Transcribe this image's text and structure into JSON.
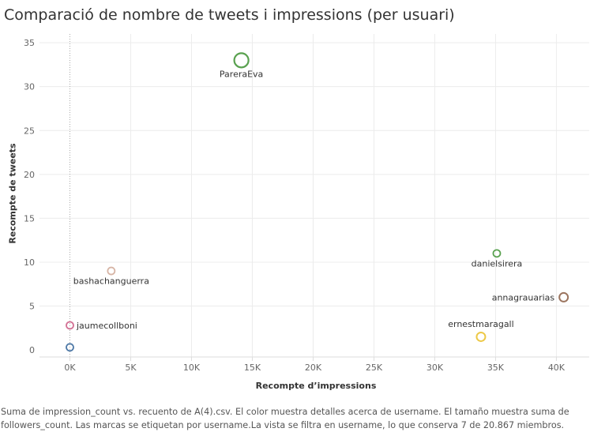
{
  "chart_data": {
    "type": "scatter",
    "title": "Comparació de nombre de tweets i impressions (per usuari)",
    "xlabel": "Recompte d’impressions",
    "ylabel": "Recompte de tweets",
    "xlim": [
      -2500,
      42700
    ],
    "ylim": [
      -0.8,
      36
    ],
    "x_ticks": [
      {
        "value": 0,
        "label": "0K"
      },
      {
        "value": 5000,
        "label": "5K"
      },
      {
        "value": 10000,
        "label": "10K"
      },
      {
        "value": 15000,
        "label": "15K"
      },
      {
        "value": 20000,
        "label": "20K"
      },
      {
        "value": 25000,
        "label": "25K"
      },
      {
        "value": 30000,
        "label": "30K"
      },
      {
        "value": 35000,
        "label": "35K"
      },
      {
        "value": 40000,
        "label": "40K"
      }
    ],
    "y_ticks": [
      {
        "value": 0,
        "label": "0"
      },
      {
        "value": 5,
        "label": "5"
      },
      {
        "value": 10,
        "label": "10"
      },
      {
        "value": 15,
        "label": "15"
      },
      {
        "value": 20,
        "label": "20"
      },
      {
        "value": 25,
        "label": "25"
      },
      {
        "value": 30,
        "label": "30"
      },
      {
        "value": 35,
        "label": "35"
      }
    ],
    "grid": true,
    "zero_reference_line": true,
    "points": [
      {
        "name": "PareraEva",
        "x": 14100,
        "y": 33,
        "color": "#59a14f",
        "size_rank": "large",
        "label_pos": "below"
      },
      {
        "name": "danielsirera",
        "x": 35100,
        "y": 11,
        "color": "#59a14f",
        "size_rank": "small",
        "label_pos": "below"
      },
      {
        "name": "annagrauarias",
        "x": 40600,
        "y": 6,
        "color": "#9c755f",
        "size_rank": "medium",
        "label_pos": "left"
      },
      {
        "name": "ernestmaragall",
        "x": 33800,
        "y": 1.5,
        "color": "#edc948",
        "size_rank": "medium",
        "label_pos": "above"
      },
      {
        "name": "bashachanguerra",
        "x": 3400,
        "y": 9,
        "color": "#d7b5a6",
        "size_rank": "small",
        "label_pos": "below"
      },
      {
        "name": "jaumecollboni",
        "x": 0,
        "y": 2.8,
        "color": "#d37295",
        "size_rank": "small",
        "label_pos": "right"
      },
      {
        "name": "",
        "x": 0,
        "y": 0.3,
        "color": "#4e79a7",
        "size_rank": "small",
        "label_pos": "none"
      }
    ]
  },
  "caption": "Suma de impression_count vs. recuento de A(4).csv. El color muestra detalles acerca de username. El tamaño muestra suma de followers_count. Las marcas se etiquetan por username.La vista se filtra en username, lo que conserva 7 de 20.867 miembros."
}
